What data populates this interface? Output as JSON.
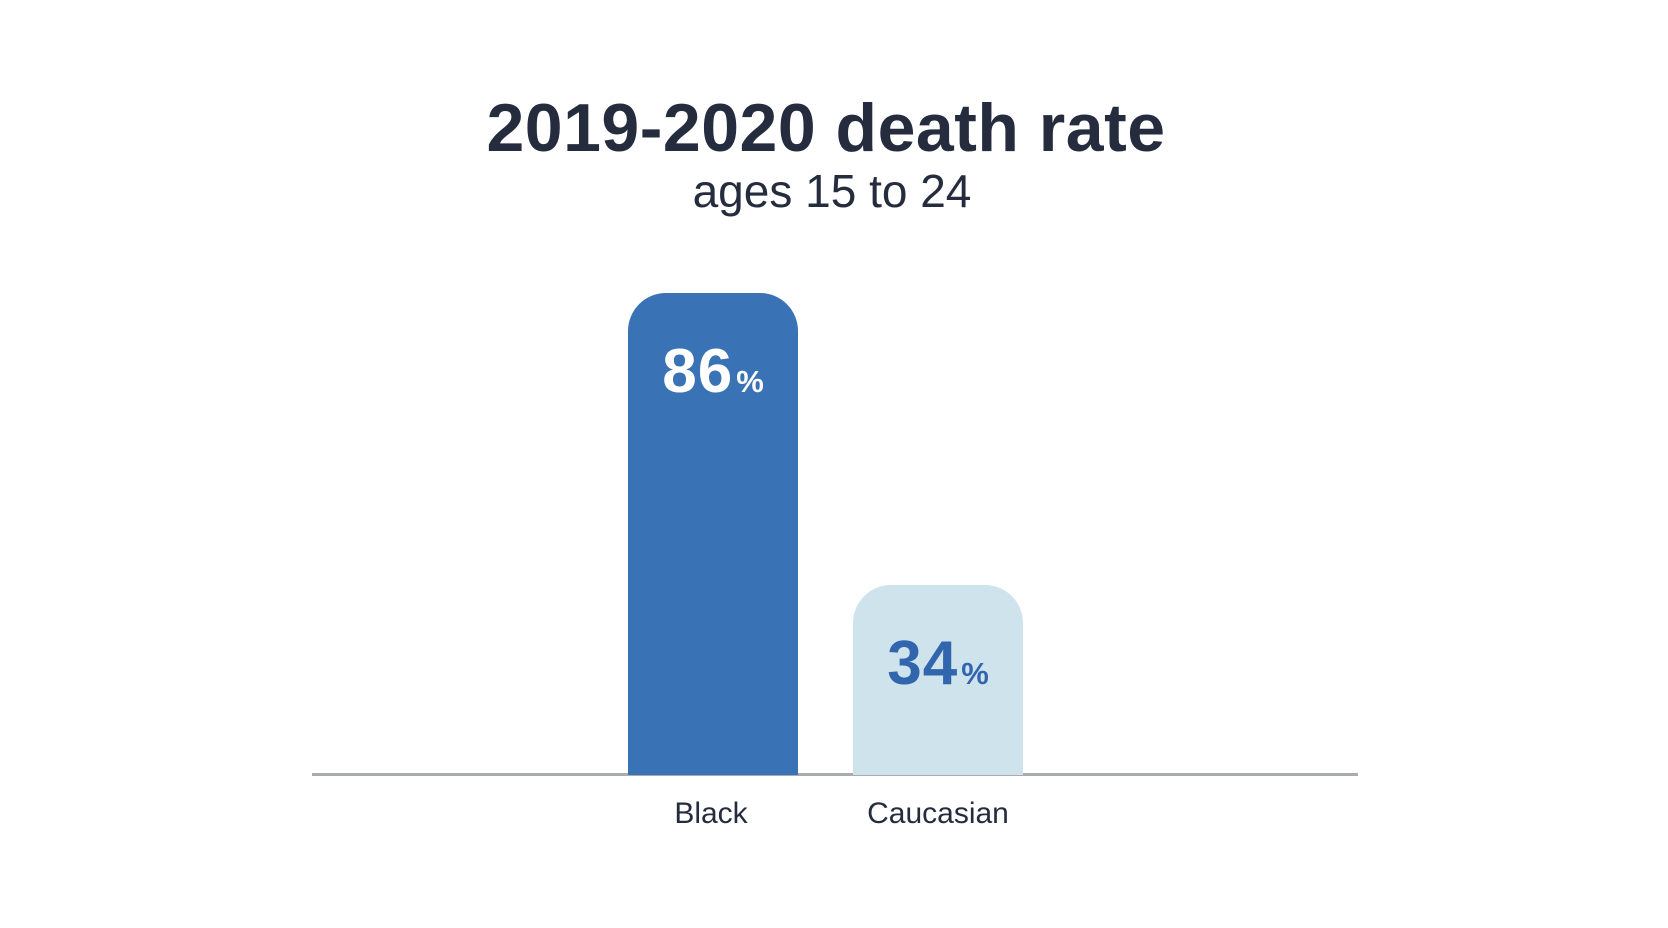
{
  "chart_data": {
    "type": "bar",
    "title": "2019-2020 death rate",
    "subtitle": "ages 15 to 24",
    "categories": [
      "Black",
      "Caucasian"
    ],
    "values": [
      86,
      34
    ],
    "unit": "%",
    "ylim": [
      0,
      100
    ],
    "grid": false,
    "legend": false,
    "bar_colors": [
      "#3973b5",
      "#cee3ec"
    ],
    "value_label_colors": [
      "#ffffff",
      "#3166ae"
    ],
    "text_color": "#252c3e",
    "axis_line_color": "#a9abae",
    "background_color": "#ffffff"
  }
}
